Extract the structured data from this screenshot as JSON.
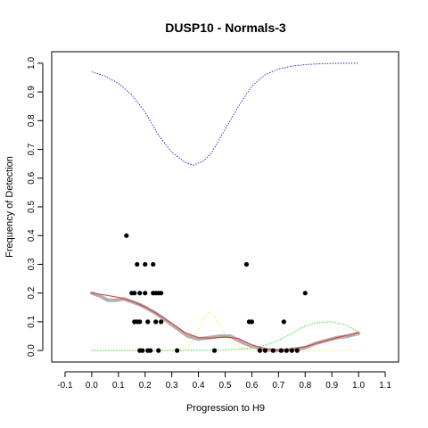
{
  "chart_data": {
    "type": "scatter",
    "title": "DUSP10 - Normals-3",
    "xlabel": "Progression to H9",
    "ylabel": "Frequency of Detection",
    "xlim": [
      -0.15,
      1.15
    ],
    "ylim": [
      -0.04,
      1.04
    ],
    "xticks": [
      -0.1,
      0.0,
      0.1,
      0.2,
      0.3,
      0.4,
      0.5,
      0.6,
      0.7,
      0.8,
      0.9,
      1.0,
      1.1
    ],
    "xtick_labels": [
      "-0.1",
      "0.0",
      "0.1",
      "0.2",
      "0.3",
      "0.4",
      "0.5",
      "0.6",
      "0.7",
      "0.8",
      "0.9",
      "1.0",
      "1.1"
    ],
    "yticks": [
      0.0,
      0.1,
      0.2,
      0.3,
      0.4,
      0.5,
      0.6,
      0.7,
      0.8,
      0.9,
      1.0
    ],
    "ytick_labels": [
      "0.0",
      "0.1",
      "0.2",
      "0.3",
      "0.4",
      "0.5",
      "0.6",
      "0.7",
      "0.8",
      "0.9",
      "1.0"
    ],
    "grid": false,
    "colors": {
      "points": "#000000",
      "smoothed": "#b0b0b0",
      "fit": "#e03030",
      "upper": "#3030e0",
      "green": "#40d040",
      "yellow": "#f0f060"
    },
    "series": [
      {
        "kind": "points",
        "x": [
          0.13,
          0.15,
          0.16,
          0.16,
          0.17,
          0.17,
          0.18,
          0.18,
          0.18,
          0.19,
          0.2,
          0.2,
          0.21,
          0.21,
          0.22,
          0.23,
          0.23,
          0.24,
          0.24,
          0.25,
          0.25,
          0.26,
          0.26,
          0.32,
          0.46,
          0.58,
          0.59,
          0.6,
          0.63,
          0.65,
          0.68,
          0.71,
          0.72,
          0.73,
          0.75,
          0.77,
          0.8
        ],
        "y": [
          0.4,
          0.2,
          0.1,
          0.2,
          0.3,
          0.1,
          0.0,
          0.2,
          0.1,
          0.0,
          0.3,
          0.2,
          0.1,
          0.0,
          0.0,
          0.2,
          0.3,
          0.1,
          0.2,
          0.0,
          0.2,
          0.1,
          0.2,
          0.0,
          0.0,
          0.3,
          0.1,
          0.1,
          0.0,
          0.0,
          0.0,
          0.0,
          0.1,
          0.0,
          0.0,
          0.0,
          0.2
        ]
      },
      {
        "kind": "smoothed",
        "x": [
          0.0,
          0.03,
          0.06,
          0.09,
          0.12,
          0.15,
          0.18,
          0.21,
          0.24,
          0.27,
          0.3,
          0.33,
          0.36,
          0.4,
          0.44,
          0.48,
          0.52,
          0.56,
          0.6,
          0.64,
          0.68,
          0.72,
          0.76,
          0.8,
          0.84,
          0.88,
          0.92,
          0.96,
          1.0
        ],
        "y": [
          0.2,
          0.19,
          0.175,
          0.175,
          0.18,
          0.17,
          0.16,
          0.145,
          0.13,
          0.11,
          0.09,
          0.07,
          0.05,
          0.04,
          0.045,
          0.05,
          0.05,
          0.03,
          0.015,
          0.005,
          0.0,
          0.0,
          0.005,
          0.01,
          0.025,
          0.035,
          0.045,
          0.05,
          0.06
        ]
      },
      {
        "kind": "fit",
        "x": [
          0.0,
          0.05,
          0.1,
          0.15,
          0.2,
          0.25,
          0.3,
          0.35,
          0.4,
          0.45,
          0.5,
          0.55,
          0.6,
          0.65,
          0.7,
          0.75,
          0.8,
          0.85,
          0.9,
          0.95,
          1.0
        ],
        "y": [
          0.2,
          0.193,
          0.185,
          0.172,
          0.152,
          0.125,
          0.095,
          0.062,
          0.045,
          0.043,
          0.047,
          0.042,
          0.02,
          0.006,
          0.002,
          0.004,
          0.013,
          0.027,
          0.04,
          0.052,
          0.062
        ]
      },
      {
        "kind": "upper",
        "x": [
          0.0,
          0.05,
          0.1,
          0.15,
          0.2,
          0.25,
          0.3,
          0.35,
          0.38,
          0.42,
          0.45,
          0.5,
          0.55,
          0.6,
          0.65,
          0.7,
          0.75,
          0.8,
          0.85,
          0.9,
          0.95,
          1.0
        ],
        "y": [
          0.97,
          0.955,
          0.93,
          0.89,
          0.83,
          0.75,
          0.69,
          0.655,
          0.645,
          0.66,
          0.69,
          0.77,
          0.85,
          0.92,
          0.96,
          0.98,
          0.99,
          0.995,
          0.998,
          0.999,
          1.0,
          1.0
        ]
      },
      {
        "kind": "green",
        "x": [
          0.0,
          0.2,
          0.4,
          0.5,
          0.55,
          0.6,
          0.65,
          0.7,
          0.75,
          0.8,
          0.85,
          0.9,
          0.95,
          1.0
        ],
        "y": [
          0.0,
          0.0,
          0.001,
          0.002,
          0.004,
          0.008,
          0.018,
          0.035,
          0.06,
          0.085,
          0.098,
          0.1,
          0.09,
          0.065
        ]
      },
      {
        "kind": "yellow",
        "x": [
          0.0,
          0.3,
          0.36,
          0.39,
          0.42,
          0.44,
          0.46,
          0.49,
          0.52,
          0.56,
          0.6,
          1.0
        ],
        "y": [
          0.0,
          0.0,
          0.01,
          0.05,
          0.11,
          0.135,
          0.12,
          0.07,
          0.03,
          0.008,
          0.0,
          0.0
        ]
      }
    ]
  }
}
